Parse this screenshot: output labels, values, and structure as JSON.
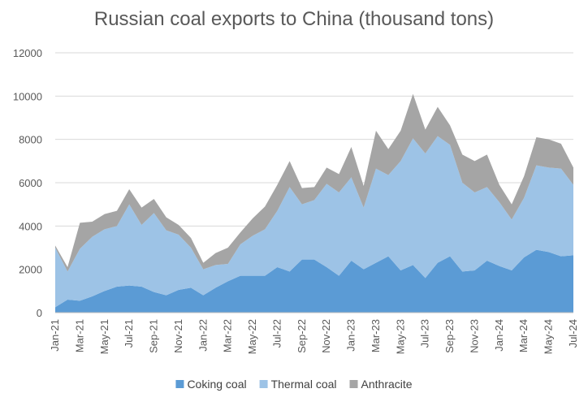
{
  "chart_data": {
    "type": "area",
    "stacked": true,
    "title": "Russian coal exports to China (thousand tons)",
    "xlabel": "",
    "ylabel": "",
    "ylim": [
      0,
      12000
    ],
    "yticks": [
      0,
      2000,
      4000,
      6000,
      8000,
      10000,
      12000
    ],
    "grid": true,
    "legend_position": "bottom",
    "x": [
      "Jan-21",
      "Feb-21",
      "Mar-21",
      "Apr-21",
      "May-21",
      "Jun-21",
      "Jul-21",
      "Aug-21",
      "Sep-21",
      "Oct-21",
      "Nov-21",
      "Dec-21",
      "Jan-22",
      "Feb-22",
      "Mar-22",
      "Apr-22",
      "May-22",
      "Jun-22",
      "Jul-22",
      "Aug-22",
      "Sep-22",
      "Oct-22",
      "Nov-22",
      "Dec-22",
      "Jan-23",
      "Feb-23",
      "Mar-23",
      "Apr-23",
      "May-23",
      "Jun-23",
      "Jul-23",
      "Aug-23",
      "Sep-23",
      "Oct-23",
      "Nov-23",
      "Dec-23",
      "Jan-24",
      "Feb-24",
      "Mar-24",
      "Apr-24",
      "May-24",
      "Jun-24",
      "Jul-24"
    ],
    "x_tick_labels": [
      "Jan-21",
      "Mar-21",
      "May-21",
      "Jul-21",
      "Sep-21",
      "Nov-21",
      "Jan-22",
      "Mar-22",
      "May-22",
      "Jul-22",
      "Sep-22",
      "Nov-22",
      "Jan-23",
      "Mar-23",
      "May-23",
      "Jul-23",
      "Sep-23",
      "Nov-23",
      "Jan-24",
      "Mar-24",
      "May-24",
      "Jul-24"
    ],
    "series": [
      {
        "name": "Coking coal",
        "color": "#5b9bd5",
        "values": [
          250,
          600,
          550,
          750,
          1000,
          1200,
          1250,
          1200,
          950,
          800,
          1050,
          1150,
          800,
          1150,
          1450,
          1700,
          1700,
          1700,
          2100,
          1900,
          2450,
          2450,
          2100,
          1700,
          2400,
          2000,
          2300,
          2600,
          1950,
          2200,
          1600,
          2300,
          2600,
          1900,
          1950,
          2400,
          2150,
          1950,
          2550,
          2900,
          2800,
          2600,
          2650
        ]
      },
      {
        "name": "Thermal coal",
        "color": "#9dc3e6",
        "values": [
          2750,
          1300,
          2400,
          2750,
          2850,
          2800,
          3750,
          2850,
          3650,
          3000,
          2550,
          1850,
          1200,
          1050,
          800,
          1450,
          1850,
          2150,
          2600,
          3900,
          2550,
          2750,
          3850,
          3850,
          3850,
          2850,
          4350,
          3750,
          5050,
          5850,
          5750,
          5850,
          5150,
          4100,
          3600,
          3400,
          2950,
          2350,
          2750,
          3900,
          3900,
          4050,
          3250
        ]
      },
      {
        "name": "Anthracite",
        "color": "#a5a5a5",
        "values": [
          100,
          200,
          1200,
          700,
          700,
          700,
          700,
          800,
          650,
          600,
          450,
          450,
          300,
          550,
          750,
          550,
          800,
          1050,
          1200,
          1200,
          750,
          600,
          750,
          850,
          1400,
          1000,
          1750,
          1200,
          1400,
          2050,
          1100,
          1350,
          900,
          1300,
          1450,
          1500,
          800,
          700,
          1000,
          1300,
          1300,
          1150,
          800
        ]
      }
    ]
  }
}
